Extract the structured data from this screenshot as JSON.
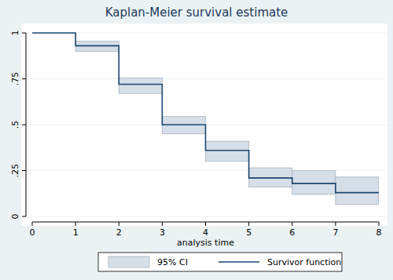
{
  "chart_data": {
    "type": "line",
    "title": "Kaplan-Meier survival estimate",
    "x_label": "analysis time",
    "x": [
      0,
      1,
      2,
      3,
      4,
      5,
      6,
      7,
      8
    ],
    "series": [
      {
        "name": "95% CI",
        "type": "area",
        "color": "#d6dee7",
        "lower": [
          null,
          0.9,
          0.67,
          0.45,
          0.3,
          0.16,
          0.12,
          0.065,
          0.065
        ],
        "upper": [
          null,
          0.955,
          0.755,
          0.545,
          0.41,
          0.265,
          0.25,
          0.215,
          0.215
        ]
      },
      {
        "name": "Survivor function",
        "type": "line",
        "line_style": "step",
        "color": "#1a476f",
        "values": [
          1,
          0.93,
          0.72,
          0.5,
          0.36,
          0.21,
          0.18,
          0.13,
          0.13
        ]
      }
    ],
    "xlim": [
      0,
      8
    ],
    "xticks": [
      0,
      1,
      2,
      3,
      4,
      5,
      6,
      7,
      8
    ],
    "ylim": [
      0,
      1
    ],
    "yticks": [
      0,
      {
        "value": 0.25,
        "label": ".25"
      },
      {
        "value": 0.5,
        "label": ".5"
      },
      {
        "value": 0.75,
        "label": ".75"
      },
      1
    ],
    "grid": true,
    "legend": "bottom"
  }
}
